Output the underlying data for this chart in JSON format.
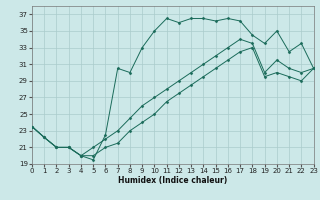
{
  "xlabel": "Humidex (Indice chaleur)",
  "bg_color": "#cce8e8",
  "grid_color": "#aacccc",
  "line_color": "#1a6b5a",
  "xlim": [
    0,
    23
  ],
  "ylim": [
    19,
    38
  ],
  "yticks": [
    19,
    21,
    23,
    25,
    27,
    29,
    31,
    33,
    35,
    37
  ],
  "xticks": [
    0,
    1,
    2,
    3,
    4,
    5,
    6,
    7,
    8,
    9,
    10,
    11,
    12,
    13,
    14,
    15,
    16,
    17,
    18,
    19,
    20,
    21,
    22,
    23
  ],
  "series": [
    [
      23.5,
      22.2,
      21.0,
      21.0,
      20.0,
      19.5,
      22.5,
      30.5,
      30.0,
      33.0,
      35.0,
      36.5,
      36.0,
      36.5,
      36.5,
      36.2,
      36.5,
      36.2,
      34.5,
      33.5,
      35.0,
      32.5,
      33.5,
      30.5
    ],
    [
      23.5,
      22.2,
      21.0,
      21.0,
      20.0,
      21.0,
      22.0,
      23.0,
      24.5,
      26.0,
      27.0,
      28.0,
      29.0,
      30.0,
      31.0,
      32.0,
      33.0,
      34.0,
      33.5,
      30.0,
      31.5,
      30.5,
      30.0,
      30.5
    ],
    [
      23.5,
      22.2,
      21.0,
      21.0,
      20.0,
      20.0,
      21.0,
      21.5,
      23.0,
      24.0,
      25.0,
      26.5,
      27.5,
      28.5,
      29.5,
      30.5,
      31.5,
      32.5,
      33.0,
      29.5,
      30.0,
      29.5,
      29.0,
      30.5
    ]
  ]
}
